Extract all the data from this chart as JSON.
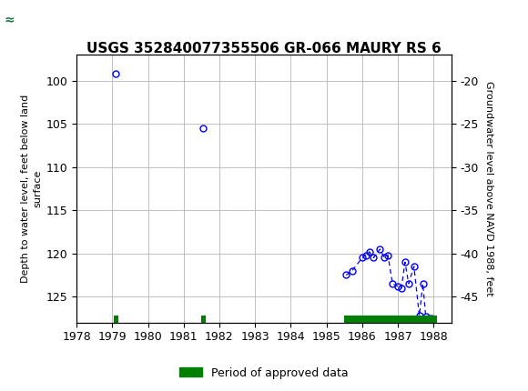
{
  "title": "USGS 352840077355506 GR-066 MAURY RS 6",
  "ylabel_left": "Depth to water level, feet below land\nsurface",
  "ylabel_right": "Groundwater level above NAVD 1988, feet",
  "xlim": [
    1978,
    1988.5
  ],
  "ylim_left": [
    128,
    97
  ],
  "ylim_right": [
    -48,
    -17
  ],
  "xticks": [
    1978,
    1979,
    1980,
    1981,
    1982,
    1983,
    1984,
    1985,
    1986,
    1987,
    1988
  ],
  "yticks_left": [
    100,
    105,
    110,
    115,
    120,
    125
  ],
  "yticks_right": [
    -20,
    -25,
    -30,
    -35,
    -40,
    -45
  ],
  "header_color": "#1a7040",
  "background_color": "#ffffff",
  "plot_bg_color": "#ffffff",
  "grid_color": "#c0c0c0",
  "data_points": [
    [
      1979.1,
      99.2
    ],
    [
      1981.55,
      105.5
    ],
    [
      1985.55,
      122.5
    ],
    [
      1985.72,
      122.0
    ],
    [
      1986.0,
      120.5
    ],
    [
      1986.1,
      120.2
    ],
    [
      1986.2,
      119.8
    ],
    [
      1986.32,
      120.5
    ],
    [
      1986.5,
      119.5
    ],
    [
      1986.62,
      120.5
    ],
    [
      1986.72,
      120.2
    ],
    [
      1986.85,
      123.5
    ],
    [
      1987.0,
      123.8
    ],
    [
      1987.1,
      124.0
    ],
    [
      1987.2,
      121.0
    ],
    [
      1987.3,
      123.5
    ],
    [
      1987.45,
      121.5
    ],
    [
      1987.6,
      127.2
    ],
    [
      1987.7,
      123.5
    ],
    [
      1987.78,
      127.3
    ],
    [
      1987.87,
      127.5
    ],
    [
      1987.95,
      127.5
    ]
  ],
  "approved_segments": [
    {
      "type": "point",
      "x": 1979.1
    },
    {
      "type": "point",
      "x": 1981.55
    },
    {
      "type": "bar",
      "x_start": 1985.5,
      "x_end": 1988.1
    }
  ],
  "marker_color": "#0000ff",
  "line_color": "#0000ff",
  "approved_color": "#008000",
  "legend_label": "Period of approved data",
  "title_fontsize": 11,
  "tick_fontsize": 9,
  "label_fontsize": 8
}
